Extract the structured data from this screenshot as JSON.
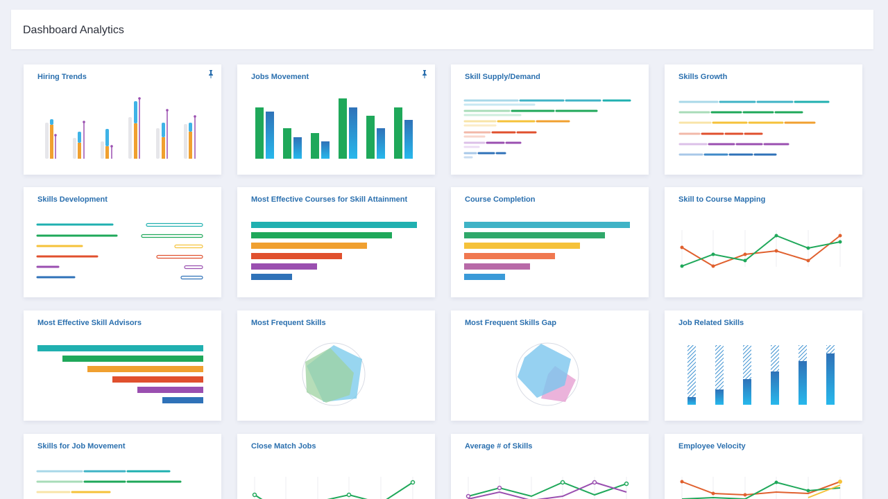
{
  "header": {
    "title": "Dashboard Analytics"
  },
  "cards": [
    {
      "title": "Hiring Trends",
      "pinned": true
    },
    {
      "title": "Jobs Movement",
      "pinned": true
    },
    {
      "title": "Skill Supply/Demand"
    },
    {
      "title": "Skills Growth"
    },
    {
      "title": "Skills Development"
    },
    {
      "title": "Most Effective Courses for Skill Attainment"
    },
    {
      "title": "Course Completion"
    },
    {
      "title": "Skill to Course Mapping"
    },
    {
      "title": "Most Effective Skill Advisors"
    },
    {
      "title": "Most Frequent Skills"
    },
    {
      "title": "Most Frequent Skills Gap"
    },
    {
      "title": "Job Related Skills"
    },
    {
      "title": "Skills for Job Movement"
    },
    {
      "title": "Close Match Jobs"
    },
    {
      "title": "Average # of Skills"
    },
    {
      "title": "Employee Velocity"
    }
  ],
  "icons": {
    "pin": "pin-icon"
  },
  "colors": {
    "teal": "#20b0b0",
    "green": "#1fa85a",
    "yellow": "#f5c23a",
    "orange": "#f0a030",
    "red": "#e0502e",
    "purple": "#9a4fb0",
    "blue": "#2f72b8",
    "sky": "#3fb3e6",
    "pink": "#e28ac8"
  }
}
